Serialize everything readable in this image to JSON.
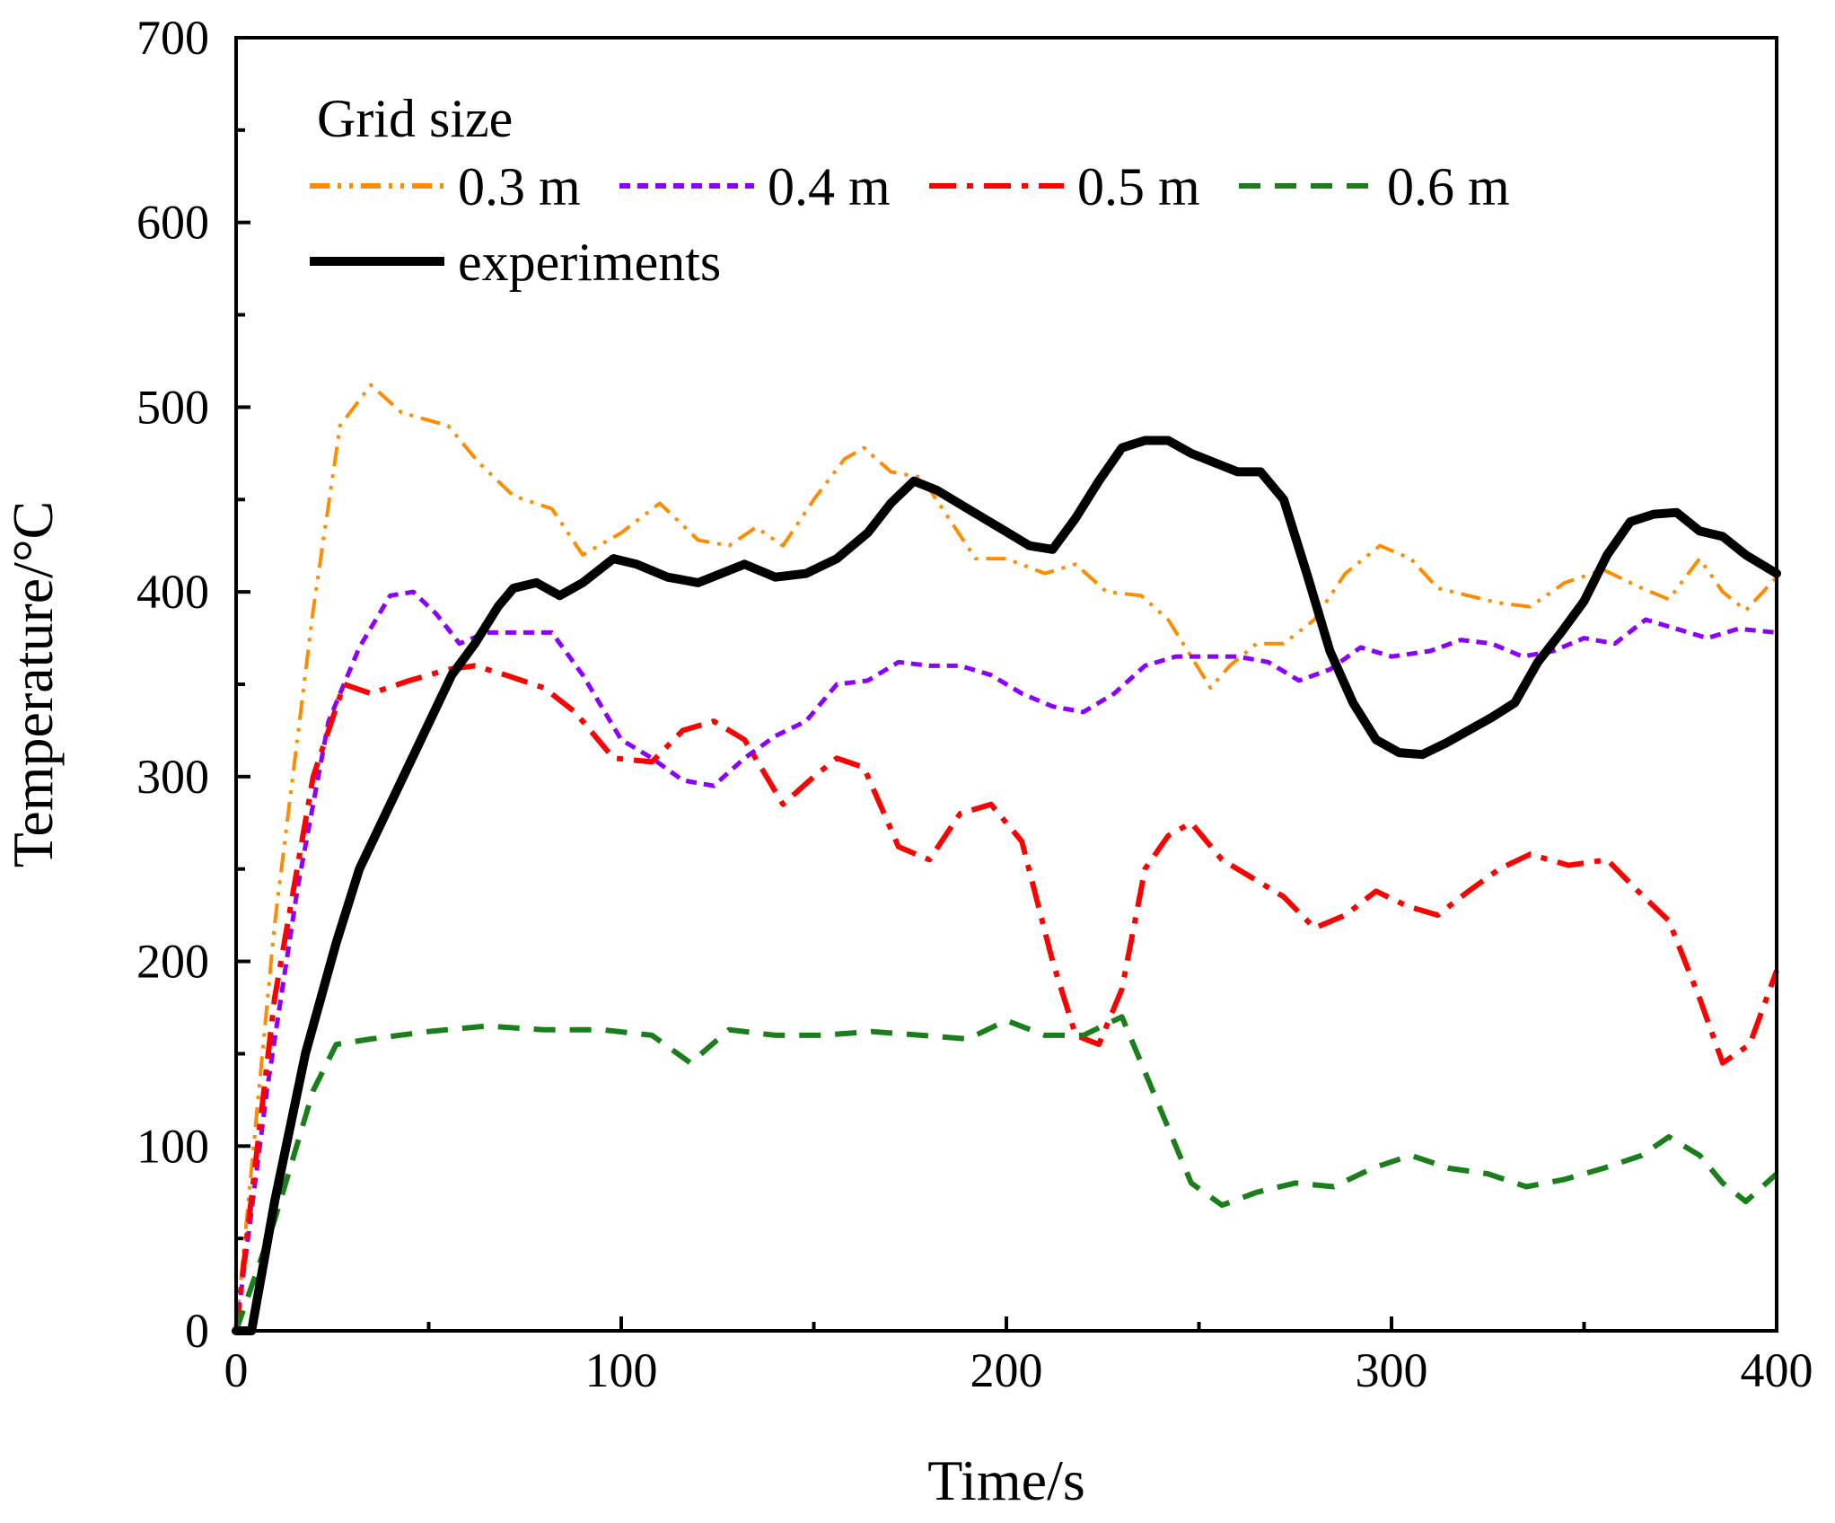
{
  "chart_data": {
    "type": "line",
    "title": "",
    "xlabel": "Time/s",
    "ylabel": "Temperature/°C",
    "xlim": [
      0,
      400
    ],
    "ylim": [
      0,
      700
    ],
    "xticks": [
      0,
      100,
      200,
      300,
      400
    ],
    "yticks": [
      0,
      100,
      200,
      300,
      400,
      500,
      600,
      700
    ],
    "grid": false,
    "legend": {
      "title": "Grid size",
      "placement": "top-left"
    },
    "series": [
      {
        "name": "0.3 m",
        "color": "#ff8c00",
        "style": "dash-dot-dot",
        "x": [
          0,
          10,
          20,
          27,
          35,
          43,
          55,
          63,
          72,
          82,
          90,
          100,
          110,
          120,
          128,
          135,
          142,
          150,
          158,
          163,
          170,
          178,
          185,
          192,
          200,
          210,
          218,
          226,
          235,
          242,
          248,
          253,
          258,
          265,
          272,
          280,
          288,
          297,
          305,
          312,
          320,
          328,
          336,
          345,
          355,
          365,
          372,
          380,
          386,
          392,
          400
        ],
        "y": [
          0,
          220,
          390,
          490,
          512,
          497,
          490,
          470,
          452,
          445,
          420,
          432,
          448,
          428,
          425,
          435,
          425,
          450,
          472,
          478,
          465,
          462,
          440,
          418,
          418,
          410,
          415,
          400,
          398,
          385,
          365,
          348,
          360,
          372,
          372,
          385,
          410,
          425,
          418,
          402,
          398,
          394,
          392,
          405,
          412,
          402,
          396,
          418,
          400,
          390,
          408
        ]
      },
      {
        "name": "0.4 m",
        "color": "#8b00ff",
        "style": "short-dash",
        "x": [
          0,
          8,
          16,
          24,
          32,
          40,
          46,
          52,
          58,
          65,
          72,
          82,
          90,
          100,
          108,
          116,
          124,
          132,
          140,
          148,
          156,
          164,
          172,
          180,
          188,
          196,
          204,
          212,
          220,
          228,
          236,
          244,
          252,
          260,
          268,
          276,
          284,
          292,
          300,
          310,
          318,
          326,
          334,
          342,
          350,
          358,
          366,
          374,
          382,
          390,
          400
        ],
        "y": [
          0,
          130,
          240,
          330,
          370,
          398,
          400,
          388,
          372,
          378,
          378,
          378,
          355,
          320,
          310,
          298,
          295,
          310,
          322,
          330,
          350,
          352,
          362,
          360,
          360,
          355,
          345,
          338,
          335,
          345,
          360,
          365,
          365,
          365,
          362,
          352,
          358,
          370,
          365,
          368,
          374,
          372,
          365,
          368,
          375,
          372,
          385,
          380,
          375,
          380,
          378
        ]
      },
      {
        "name": "0.5 m",
        "color": "#ff0000",
        "style": "dash-dot",
        "x": [
          0,
          10,
          20,
          28,
          35,
          45,
          55,
          62,
          70,
          80,
          88,
          98,
          108,
          116,
          124,
          132,
          142,
          150,
          156,
          163,
          172,
          180,
          188,
          196,
          204,
          212,
          218,
          224,
          230,
          236,
          242,
          248,
          256,
          264,
          272,
          280,
          288,
          296,
          304,
          312,
          320,
          328,
          336,
          346,
          356,
          364,
          372,
          380,
          386,
          393,
          400
        ],
        "y": [
          0,
          180,
          300,
          350,
          345,
          352,
          358,
          360,
          355,
          348,
          335,
          310,
          308,
          325,
          330,
          320,
          285,
          300,
          310,
          305,
          262,
          255,
          280,
          285,
          265,
          200,
          160,
          155,
          185,
          250,
          268,
          275,
          255,
          245,
          235,
          218,
          225,
          238,
          230,
          225,
          238,
          250,
          258,
          252,
          255,
          238,
          222,
          180,
          145,
          155,
          195
        ]
      },
      {
        "name": "0.6 m",
        "color": "#1a7f1a",
        "style": "long-dash",
        "x": [
          0,
          10,
          20,
          26,
          35,
          50,
          65,
          80,
          95,
          108,
          118,
          128,
          140,
          152,
          165,
          178,
          190,
          200,
          210,
          220,
          230,
          240,
          248,
          256,
          265,
          275,
          285,
          295,
          305,
          315,
          325,
          335,
          345,
          355,
          365,
          372,
          380,
          386,
          392,
          400
        ],
        "y": [
          0,
          60,
          130,
          155,
          158,
          162,
          165,
          163,
          163,
          160,
          145,
          163,
          160,
          160,
          162,
          160,
          158,
          168,
          160,
          160,
          170,
          120,
          80,
          68,
          75,
          80,
          78,
          88,
          95,
          88,
          85,
          78,
          82,
          88,
          95,
          105,
          95,
          80,
          70,
          85
        ]
      },
      {
        "name": "experiments",
        "color": "#000000",
        "style": "solid",
        "x": [
          0,
          4,
          10,
          18,
          26,
          32,
          40,
          48,
          56,
          62,
          68,
          72,
          78,
          84,
          90,
          98,
          104,
          112,
          120,
          126,
          132,
          140,
          148,
          156,
          164,
          170,
          176,
          182,
          190,
          198,
          206,
          212,
          218,
          224,
          230,
          236,
          242,
          248,
          254,
          260,
          266,
          272,
          278,
          284,
          290,
          296,
          302,
          308,
          314,
          320,
          326,
          332,
          338,
          344,
          350,
          356,
          362,
          368,
          374,
          380,
          386,
          392,
          400
        ],
        "y": [
          0,
          0,
          70,
          150,
          210,
          250,
          285,
          320,
          355,
          372,
          392,
          402,
          405,
          398,
          405,
          418,
          415,
          408,
          405,
          410,
          415,
          408,
          410,
          418,
          432,
          448,
          460,
          455,
          445,
          435,
          425,
          423,
          440,
          460,
          478,
          482,
          482,
          475,
          470,
          465,
          465,
          450,
          410,
          368,
          340,
          320,
          313,
          312,
          318,
          325,
          332,
          340,
          362,
          378,
          395,
          420,
          438,
          442,
          443,
          433,
          430,
          420,
          410
        ]
      }
    ]
  }
}
